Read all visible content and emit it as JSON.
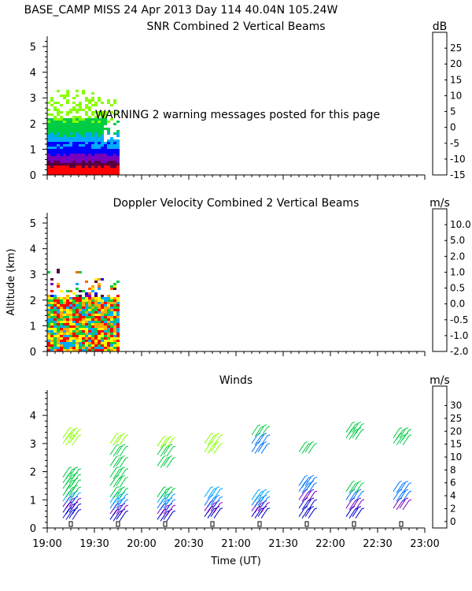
{
  "header": {
    "line1": "BASE_CAMP MISS  24 Apr 2013 Day 114 40.04N 105.24W"
  },
  "warning_text": "WARNING   2 warning messages posted for this page",
  "xaxis": {
    "label": "Time (UT)",
    "ticks": [
      "19:00",
      "19:30",
      "20:00",
      "20:30",
      "21:00",
      "21:30",
      "22:00",
      "22:30",
      "23:00"
    ],
    "range_hours": [
      19.0,
      23.0
    ]
  },
  "chart_data": [
    {
      "type": "heatmap",
      "title": "SNR Combined 2 Vertical Beams",
      "ylabel": "",
      "ylim": [
        0,
        5.4
      ],
      "yticks": [
        "0",
        "1",
        "2",
        "3",
        "4",
        "5"
      ],
      "colorbar": {
        "unit": "dB",
        "labels": [
          "25",
          "20",
          "15",
          "10",
          "5",
          "0",
          "-5",
          "-10",
          "-15"
        ],
        "colors": [
          "#ffaa00",
          "#ffff00",
          "#ff0000",
          "#55003f",
          "#7700bb",
          "#0000ff",
          "#00aaff",
          "#00cc44",
          "#88ff00"
        ]
      },
      "coverage": {
        "time_start": "19:00",
        "time_end": "19:45",
        "max_alt_km": 3.4
      },
      "layers": [
        {
          "alt": [
            0.0,
            0.3
          ],
          "color": "#ff0000"
        },
        {
          "alt": [
            0.2,
            0.5
          ],
          "color": "#55003f"
        },
        {
          "alt": [
            0.4,
            0.8
          ],
          "color": "#7700bb"
        },
        {
          "alt": [
            0.7,
            1.2
          ],
          "color": "#0000ff"
        },
        {
          "alt": [
            1.0,
            1.6
          ],
          "color": "#00aaff"
        },
        {
          "alt": [
            1.4,
            2.2
          ],
          "color": "#00cc44"
        },
        {
          "alt": [
            2.0,
            3.4
          ],
          "color": "#88ff00"
        }
      ]
    },
    {
      "type": "heatmap",
      "title": "Doppler Velocity Combined 2 Vertical Beams",
      "ylabel": "Altitude (km)",
      "ylim": [
        0,
        5.4
      ],
      "yticks": [
        "0",
        "1",
        "2",
        "3",
        "4",
        "5"
      ],
      "colorbar": {
        "unit": "m/s",
        "labels": [
          "10.0",
          "5.0",
          "2.0",
          "1.0",
          "0.5",
          "0.0",
          "-0.5",
          "-1.0",
          "-2.0"
        ],
        "colors": [
          "#55003f",
          "#7700bb",
          "#0000ff",
          "#00aaff",
          "#00cc44",
          "#ffff00",
          "#ffaa00",
          "#ff6600",
          "#ff0000"
        ]
      },
      "coverage": {
        "time_start": "19:00",
        "time_end": "19:45",
        "max_alt_km": 3.4
      },
      "dominant_low_level": [
        "#ff0000",
        "#ffaa00",
        "#ffff00",
        "#00cc44",
        "#00aaff"
      ]
    },
    {
      "type": "scatter",
      "title": "Winds",
      "ylabel": "",
      "ylim": [
        0,
        4.9
      ],
      "yticks": [
        "0",
        "1",
        "2",
        "3",
        "4"
      ],
      "colorbar": {
        "unit": "m/s",
        "labels": [
          "0",
          "2",
          "4",
          "6",
          "8",
          "10",
          "15",
          "20",
          "25",
          "30"
        ],
        "colors": [
          "#000000",
          "#55003f",
          "#0000cc",
          "#7700bb",
          "#0077ff",
          "#00aaff",
          "#00cc44",
          "#88ff00",
          "#ffaa00",
          "#ff6600",
          "#ff0000"
        ]
      },
      "profile_times": [
        "19:15",
        "19:45",
        "20:15",
        "20:45",
        "21:15",
        "21:45",
        "22:15",
        "22:45"
      ],
      "barbs": [
        {
          "t": "19:15",
          "alt": [
            0.35,
            0.55,
            0.75,
            0.95,
            1.15,
            1.4,
            1.6,
            1.8,
            3.0,
            3.2
          ],
          "speed": [
            2,
            3,
            5,
            8,
            10,
            10,
            12,
            12,
            15,
            18
          ]
        },
        {
          "t": "19:45",
          "alt": [
            0.3,
            0.5,
            0.7,
            0.9,
            1.1,
            1.5,
            1.8,
            2.2,
            2.6,
            3.0
          ],
          "speed": [
            2,
            4,
            6,
            8,
            10,
            12,
            12,
            12,
            14,
            15
          ]
        },
        {
          "t": "20:15",
          "alt": [
            0.3,
            0.5,
            0.7,
            0.9,
            1.1,
            2.2,
            2.6,
            2.9
          ],
          "speed": [
            2,
            4,
            6,
            8,
            10,
            12,
            14,
            15
          ]
        },
        {
          "t": "20:45",
          "alt": [
            0.4,
            0.6,
            0.8,
            1.1,
            2.7,
            3.0
          ],
          "speed": [
            3,
            4,
            6,
            9,
            15,
            16
          ]
        },
        {
          "t": "21:15",
          "alt": [
            0.4,
            0.6,
            0.8,
            1.0,
            2.7,
            3.0,
            3.3
          ],
          "speed": [
            3,
            4,
            6,
            9,
            6,
            6,
            10
          ]
        },
        {
          "t": "21:45",
          "alt": [
            0.4,
            0.7,
            1.0,
            1.3,
            1.5,
            2.7
          ],
          "speed": [
            2,
            3,
            5,
            6,
            7,
            10
          ]
        },
        {
          "t": "22:15",
          "alt": [
            0.4,
            0.7,
            1.0,
            1.3,
            3.2,
            3.4
          ],
          "speed": [
            3,
            4,
            6,
            12,
            12,
            14
          ]
        },
        {
          "t": "22:45",
          "alt": [
            0.7,
            1.0,
            1.3,
            3.0,
            3.2
          ],
          "speed": [
            4,
            6,
            6,
            12,
            14
          ]
        }
      ]
    }
  ]
}
